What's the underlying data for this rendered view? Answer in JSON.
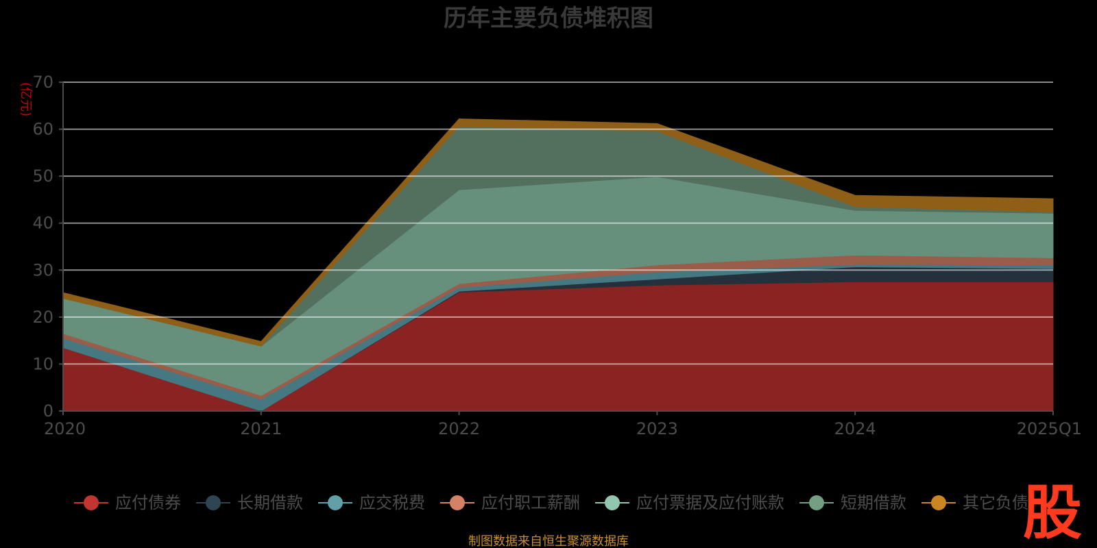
{
  "chart_data": {
    "type": "area",
    "stacked": true,
    "title": "历年主要负债堆积图",
    "ylabel": "(亿元)",
    "ylim": [
      0,
      70
    ],
    "yticks": [
      "0",
      "10",
      "20",
      "30",
      "40",
      "50",
      "60",
      "70"
    ],
    "x": [
      "2020",
      "2021",
      "2022",
      "2023",
      "2024",
      "2025Q1"
    ],
    "grid": true,
    "legend_position": "bottom",
    "series": [
      {
        "name": "应付债券",
        "color": "#c23531",
        "area_color": "#8b2323",
        "values": [
          13.5,
          0,
          25.3,
          26.8,
          27.5,
          27.5
        ]
      },
      {
        "name": "长期借款",
        "color": "#2f4554",
        "area_color": "#24313c",
        "values": [
          0,
          0,
          0.2,
          1.3,
          3.2,
          2.8
        ]
      },
      {
        "name": "应交税费",
        "color": "#61a0a8",
        "area_color": "#457880",
        "values": [
          2.0,
          2.5,
          0.8,
          1.5,
          0.5,
          0.8
        ]
      },
      {
        "name": "应付职工薪酬",
        "color": "#d48265",
        "area_color": "#9a5d49",
        "values": [
          1.0,
          0.8,
          0.8,
          1.5,
          2.0,
          1.5
        ]
      },
      {
        "name": "应付票据及应付账款",
        "color": "#91c7ae",
        "area_color": "#668f7c",
        "values": [
          7.5,
          10.5,
          20.0,
          18.8,
          9.5,
          9.5
        ]
      },
      {
        "name": "短期借款",
        "color": "#749f83",
        "area_color": "#52705d",
        "values": [
          0,
          0,
          13.5,
          9.7,
          0.8,
          0.3
        ]
      },
      {
        "name": "其它负债",
        "color": "#ca8622",
        "area_color": "#8f5f18",
        "values": [
          1.2,
          1.0,
          1.6,
          1.6,
          2.4,
          2.8
        ]
      }
    ]
  },
  "footer": {
    "source": "制图数据来自恒生聚源数据库",
    "logo": "股"
  }
}
